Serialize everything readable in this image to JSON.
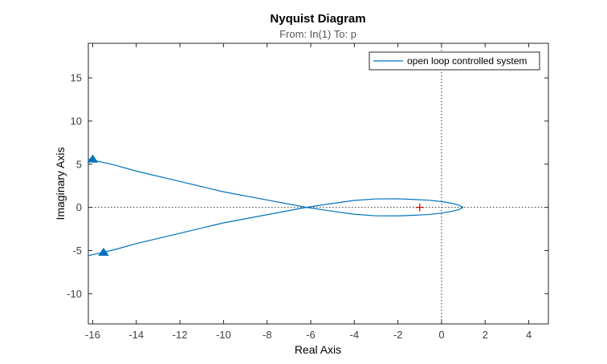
{
  "chart_data": {
    "type": "line",
    "title": "Nyquist Diagram",
    "subtitle": "From: In(1)  To: p",
    "xlabel": "Real Axis",
    "ylabel": "Imaginary Axis",
    "xlim": [
      -16.2,
      4.9
    ],
    "ylim": [
      -13.5,
      19.0
    ],
    "xticks": [
      -16,
      -14,
      -12,
      -10,
      -8,
      -6,
      -4,
      -2,
      0,
      2,
      4
    ],
    "yticks": [
      -10,
      -5,
      0,
      5,
      10,
      15
    ],
    "legend": {
      "location": "top-right",
      "entries": [
        "open loop controlled system"
      ]
    },
    "grid": false,
    "critical_point": {
      "x": -1,
      "y": 0,
      "marker": "+"
    },
    "colors": {
      "series": "#0072BD",
      "critical": "#CC0000",
      "reference": "#333333"
    },
    "series": [
      {
        "name": "open loop controlled system",
        "branches": [
          {
            "x": [
              -16.2,
              -15.0,
              -14.0,
              -12.0,
              -10.0,
              -8.0,
              -6.2,
              -5.0,
              -4.0,
              -3.0,
              -2.0,
              -1.4,
              -0.6,
              0.0,
              0.5,
              0.8,
              0.98,
              0.8,
              0.5,
              0.0
            ],
            "y": [
              5.6,
              4.9,
              4.2,
              3.0,
              1.8,
              0.85,
              0.0,
              -0.45,
              -0.8,
              -0.98,
              -0.99,
              -0.93,
              -0.83,
              -0.67,
              -0.45,
              -0.25,
              0.0,
              0.25,
              0.45,
              0.67
            ]
          },
          {
            "x": [
              0.0,
              -0.6,
              -1.4,
              -2.0,
              -3.0,
              -4.0,
              -5.0,
              -6.2,
              -8.0,
              -10.0,
              -12.0,
              -14.0,
              -15.0,
              -16.2
            ],
            "y": [
              0.67,
              0.83,
              0.93,
              0.99,
              0.98,
              0.8,
              0.45,
              0.0,
              -0.85,
              -1.8,
              -3.0,
              -4.2,
              -4.9,
              -5.6
            ]
          }
        ],
        "arrows": [
          {
            "x": -16.0,
            "y": 5.6,
            "direction": "up"
          },
          {
            "x": -15.5,
            "y": -5.2,
            "direction": "up"
          }
        ]
      }
    ]
  }
}
